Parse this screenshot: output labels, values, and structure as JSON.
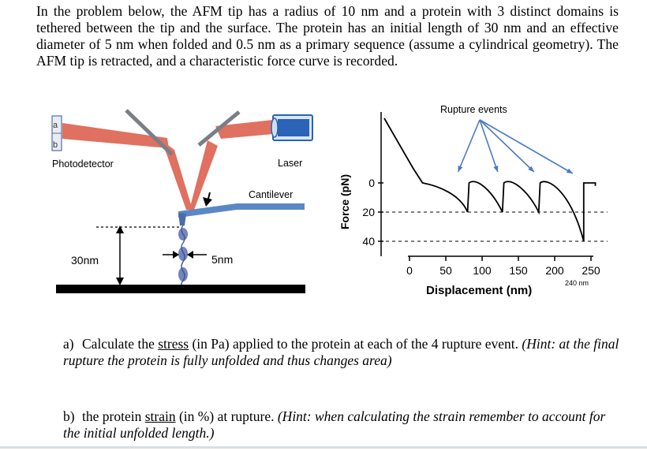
{
  "problem": {
    "intro": "In the problem below, the AFM tip has a radius of 10 nm and a protein with 3 distinct domains is tethered between the tip and the surface. The protein has an initial length of 30 nm and an effective diameter of 5 nm when folded and 0.5 nm as a primary sequence (assume a cylindrical geometry). The AFM tip is retracted, and a characteristic force curve is recorded."
  },
  "afm_diagram": {
    "detector_a": "a",
    "detector_b": "b",
    "photodetector_label": "Photodetector",
    "laser_label": "Laser",
    "cantilever_label": "Cantilever",
    "length_label": "30nm",
    "diameter_label": "5nm",
    "colors": {
      "beam": "#e07060",
      "cantilever": "#5b87c5",
      "laser": "#2a63b8",
      "surface": "#000000"
    }
  },
  "chart_data": {
    "type": "line",
    "title": "Rupture events",
    "xlabel": "Displacement (nm)",
    "ylabel": "Force (pN)",
    "x_ticks": [
      "0",
      "50",
      "100",
      "150",
      "200",
      "250"
    ],
    "y_ticks": [
      "0",
      "20",
      "40"
    ],
    "xlim": [
      0,
      260
    ],
    "ylim": [
      -20,
      45
    ],
    "y_inverted": true,
    "annotation": "240 nm",
    "rupture_x": [
      80,
      128,
      178,
      240
    ],
    "rupture_force": [
      20,
      20,
      20,
      40
    ]
  },
  "questions": {
    "a_label": "a)",
    "a_text_1": "Calculate the ",
    "a_underline": "stress",
    "a_text_2": " (in Pa) applied to the protein at each of the 4 rupture event. ",
    "a_hint": "(Hint: at the final rupture the protein is fully unfolded and thus changes area)",
    "b_label": "b)",
    "b_text_1": "the protein ",
    "b_underline": "strain",
    "b_text_2": " (in %) at rupture. ",
    "b_hint": "(Hint: when calculating the strain remember to account for the initial unfolded length.)"
  }
}
